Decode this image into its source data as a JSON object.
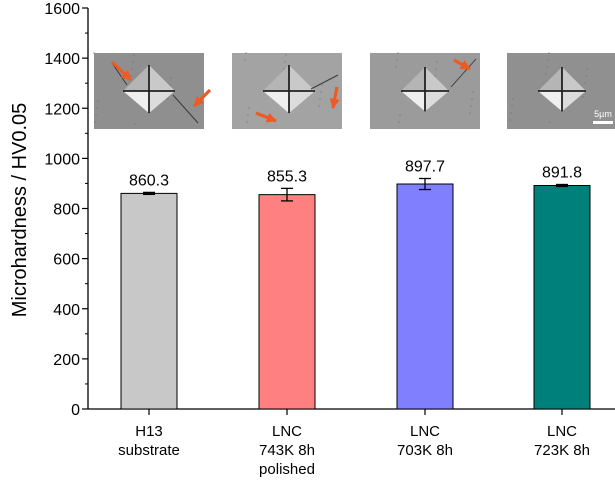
{
  "chart_data": {
    "type": "bar",
    "ylabel": "Microhardness / HV0.05",
    "ylim": [
      0,
      1600
    ],
    "yticks": [
      0,
      200,
      400,
      600,
      800,
      1000,
      1200,
      1400,
      1600
    ],
    "grid": false,
    "categories": [
      [
        "H13",
        "substrate"
      ],
      [
        "LNC",
        "743K 8h",
        "polished"
      ],
      [
        "LNC",
        "703K 8h"
      ],
      [
        "LNC",
        "723K 8h"
      ]
    ],
    "values": [
      860.3,
      855.3,
      897.7,
      891.8
    ],
    "errors": [
      4,
      25,
      22,
      4
    ],
    "data_labels": [
      "860.3",
      "855.3",
      "897.7",
      "891.8"
    ],
    "colors": [
      "#c8c8c8",
      "#ff8080",
      "#8080ff",
      "#00807a"
    ],
    "inset_images": [
      "indentation-micrograph",
      "indentation-micrograph",
      "indentation-micrograph",
      "indentation-micrograph"
    ],
    "scale_bar_label": "5µm"
  }
}
